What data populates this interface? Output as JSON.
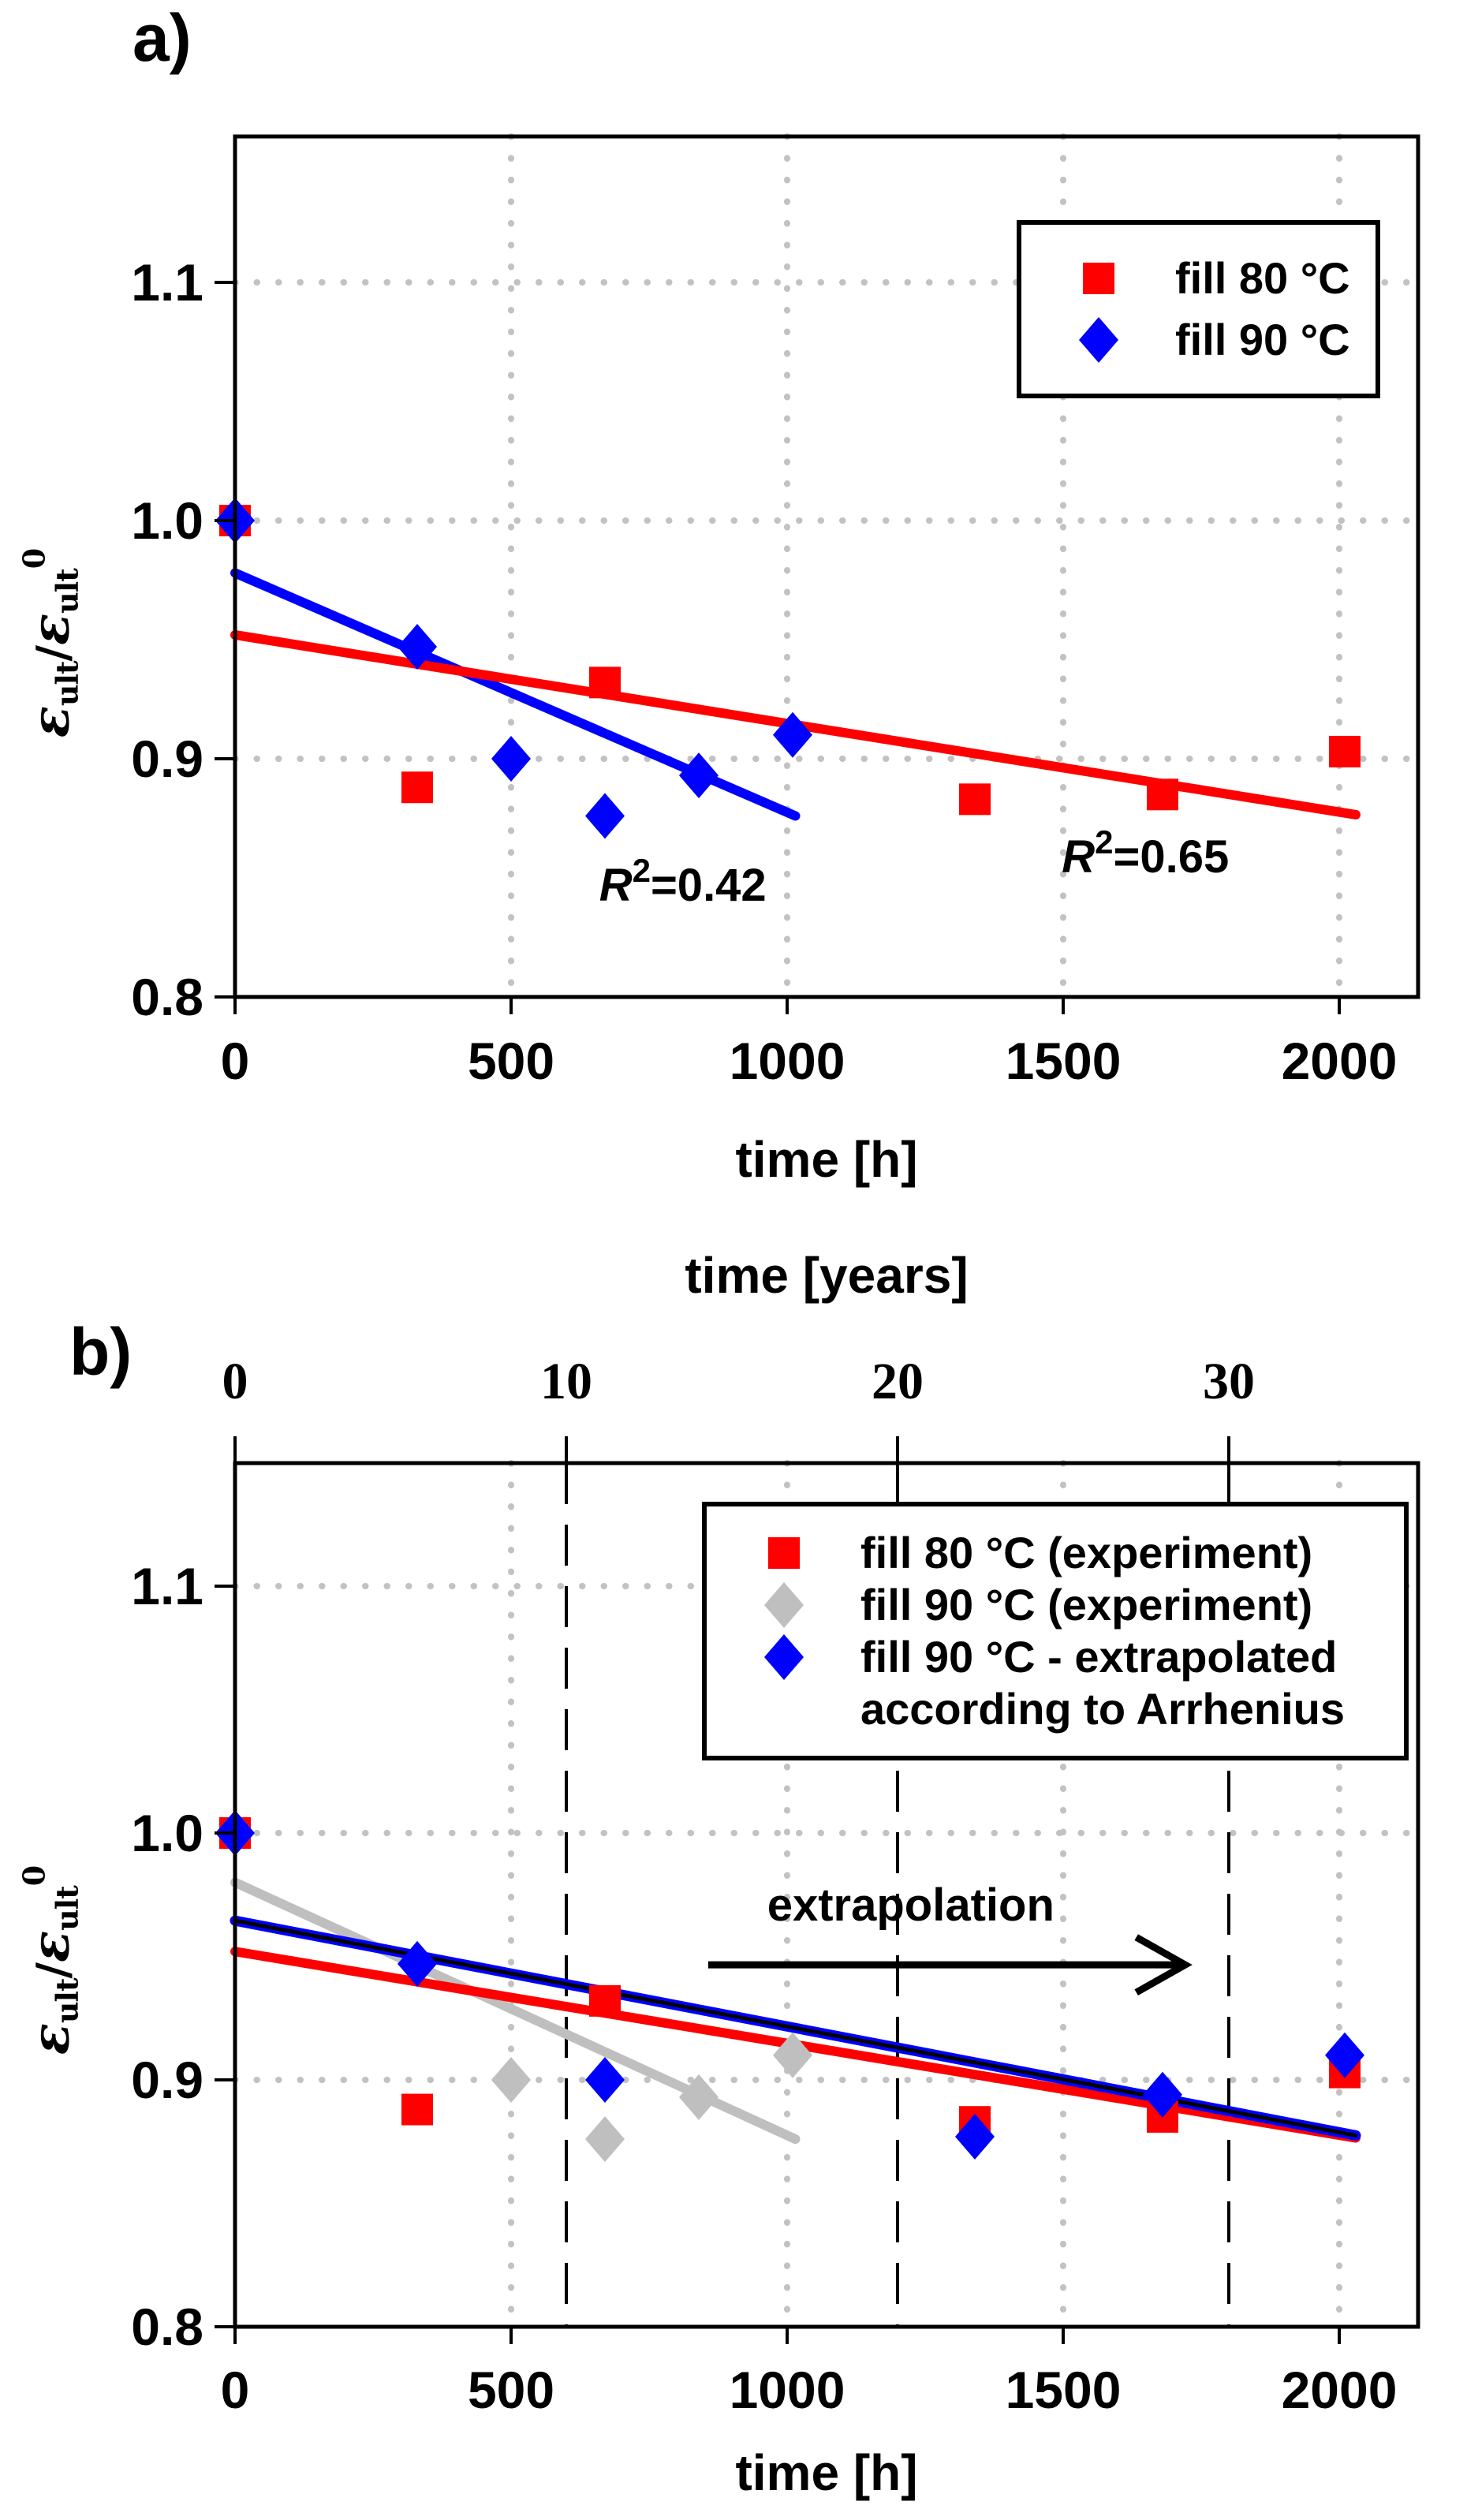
{
  "figure": {
    "panel_a_label": "a)",
    "panel_b_label": "b)",
    "y_axis_title": {
      "epsilon": "ε",
      "subscript": "ult",
      "slash": "/",
      "superscript_zero": "0"
    },
    "colors": {
      "fill_80": "#FF0000",
      "fill_90_experiment_panel_a": "#0000FF",
      "fill_90_experiment_panel_b": "#BFBFBF",
      "fill_90_extrapolated": "#0000FF",
      "extrapolated_fit_core": "#000000",
      "grid": "#C2C2C2",
      "frame": "#000000"
    }
  },
  "chart_data": [
    {
      "panel": "a",
      "type": "scatter",
      "xlabel": "time [h]",
      "ylabel": "ε_ult / ε_ult^0",
      "xlim": [
        0,
        2143
      ],
      "ylim": [
        0.8,
        1.161
      ],
      "xticks": [
        "0",
        "500",
        "1000",
        "1500",
        "2000"
      ],
      "xtick_values": [
        0,
        500,
        1000,
        1500,
        2000
      ],
      "yticks": [
        "0.8",
        "0.9",
        "1.0",
        "1.1"
      ],
      "ytick_values": [
        0.8,
        0.9,
        1.0,
        1.1
      ],
      "grid": {
        "style": "dotted",
        "on": true
      },
      "legend": {
        "position": "top-right",
        "entries": [
          {
            "marker": "square",
            "color": "#FF0000",
            "label": "fill 80 °C"
          },
          {
            "marker": "diamond",
            "color": "#0000FF",
            "label": "fill 90 °C"
          }
        ]
      },
      "series": [
        {
          "name": "fill 80 °C",
          "marker": "square",
          "color": "#FF0000",
          "points": [
            [
              0,
              1.0
            ],
            [
              330,
              0.888
            ],
            [
              670,
              0.932
            ],
            [
              1340,
              0.883
            ],
            [
              1680,
              0.885
            ],
            [
              2010,
              0.903
            ]
          ]
        },
        {
          "name": "fill 90 °C",
          "marker": "diamond",
          "color": "#0000FF",
          "points": [
            [
              0,
              1.0
            ],
            [
              330,
              0.947
            ],
            [
              500,
              0.9
            ],
            [
              670,
              0.876
            ],
            [
              840,
              0.893
            ],
            [
              1010,
              0.91
            ]
          ]
        }
      ],
      "fit_lines": [
        {
          "series": "fill 90 °C",
          "color": "#0000FF",
          "width": 12,
          "from": [
            0,
            0.978
          ],
          "to": [
            1015,
            0.876
          ],
          "r_squared": 0.42
        },
        {
          "series": "fill 80 °C",
          "color": "#FF0000",
          "width": 12,
          "from": [
            0,
            0.952
          ],
          "to": [
            2030,
            0.8765
          ],
          "r_squared": 0.65
        }
      ],
      "annotations": [
        {
          "kind": "r2",
          "base": "R",
          "sup": "2",
          "rest": "=0.42",
          "t_hours": 811,
          "value": 0.8404
        },
        {
          "kind": "r2",
          "base": "R",
          "sup": "2",
          "rest": "=0.65",
          "t_hours": 1649,
          "value": 0.8523
        }
      ]
    },
    {
      "panel": "b",
      "type": "scatter",
      "xlabel": "time [h]",
      "ylabel": "ε_ult / ε_ult^0",
      "xlim": [
        0,
        2143
      ],
      "ylim": [
        0.8,
        1.15
      ],
      "xticks": [
        "0",
        "500",
        "1000",
        "1500",
        "2000"
      ],
      "xtick_values": [
        0,
        500,
        1000,
        1500,
        2000
      ],
      "yticks": [
        "0.8",
        "0.9",
        "1.0",
        "1.1"
      ],
      "ytick_values": [
        0.8,
        0.9,
        1.0,
        1.1
      ],
      "grid": {
        "style": "dotted",
        "on": true
      },
      "top_axis": {
        "title": "time [years]",
        "tick_labels": [
          "0",
          "10",
          "20",
          "30"
        ],
        "tick_values_years": [
          0,
          10,
          20,
          30
        ],
        "hours_per_year": 60
      },
      "dashed_vlines_hours": [
        600,
        1200,
        1800
      ],
      "legend": {
        "position": "top-right",
        "entries": [
          {
            "marker": "square",
            "color": "#FF0000",
            "label": "fill 80 °C (experiment)"
          },
          {
            "marker": "diamond",
            "color": "#BFBFBF",
            "label": "fill 90 °C (experiment)"
          },
          {
            "marker": "diamond",
            "color": "#0000FF",
            "label": "fill 90 °C - extrapolated"
          },
          {
            "marker": "none",
            "color": "",
            "label": "according to Arrhenius"
          }
        ]
      },
      "series": [
        {
          "name": "fill 80 °C (experiment)",
          "marker": "square",
          "color": "#FF0000",
          "points": [
            [
              0,
              1.0
            ],
            [
              330,
              0.888
            ],
            [
              670,
              0.932
            ],
            [
              1340,
              0.883
            ],
            [
              1680,
              0.885
            ],
            [
              2010,
              0.903
            ]
          ]
        },
        {
          "name": "fill 90 °C (experiment)",
          "marker": "diamond",
          "color": "#BFBFBF",
          "points": [
            [
              0,
              1.0
            ],
            [
              500,
              0.9
            ],
            [
              670,
              0.876
            ],
            [
              840,
              0.893
            ],
            [
              1010,
              0.91
            ]
          ]
        },
        {
          "name": "fill 90 °C - extrapolated according to Arrhenius",
          "marker": "diamond",
          "color": "#0000FF",
          "points": [
            [
              0,
              1.0
            ],
            [
              330,
              0.947
            ],
            [
              670,
              0.9
            ],
            [
              1340,
              0.877
            ],
            [
              1680,
              0.894
            ],
            [
              2010,
              0.91
            ]
          ]
        }
      ],
      "fit_lines": [
        {
          "series": "fill 90 °C (experiment)",
          "color": "#BFBFBF",
          "width": 12,
          "from": [
            0,
            0.98
          ],
          "to": [
            1015,
            0.876
          ]
        },
        {
          "series": "fill 80 °C (experiment)",
          "color": "#FF0000",
          "width": 12,
          "from": [
            0,
            0.952
          ],
          "to": [
            2030,
            0.8765
          ]
        },
        {
          "series": "fill 90 °C - extrapolated",
          "color": "#0000FF",
          "width": 13,
          "core_color": "#000000",
          "core_width": 5,
          "from": [
            0,
            0.9645
          ],
          "to": [
            2030,
            0.8775
          ]
        }
      ],
      "annotations": [
        {
          "kind": "arrow-label",
          "text": "extrapolation",
          "text_t_hours": 1224,
          "text_value": 0.9645,
          "arrow": {
            "from_t_hours": 857,
            "to_t_hours": 1721,
            "value": 0.9466
          }
        }
      ]
    }
  ]
}
